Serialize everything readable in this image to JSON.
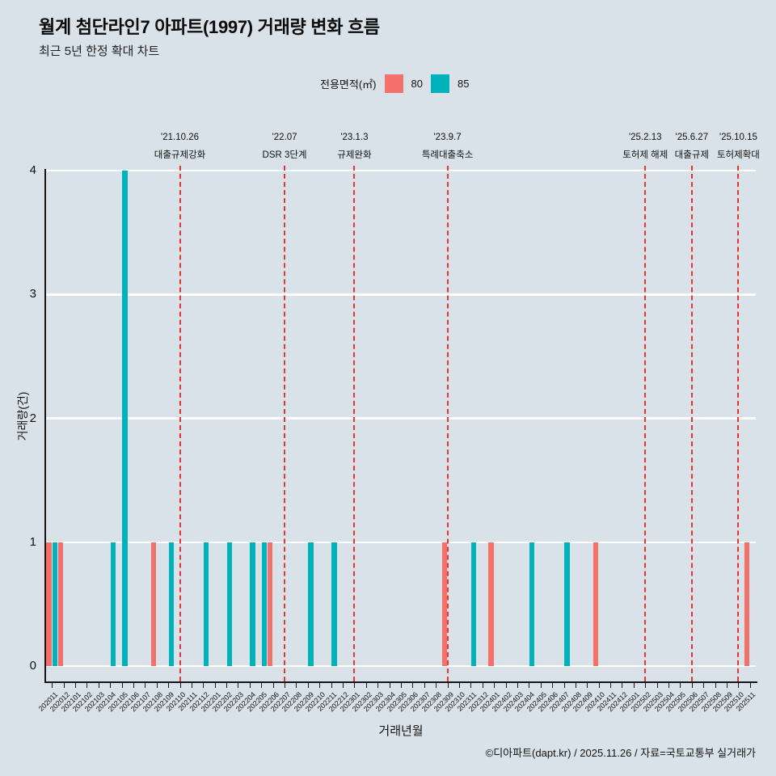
{
  "header": {
    "title": "월계 첨단라인7 아파트(1997) 거래량 변화 흐름",
    "subtitle": "최근 5년 한정 확대 차트"
  },
  "legend": {
    "label": "전용면적(㎡)"
  },
  "chart_data": {
    "type": "bar",
    "title": "월계 첨단라인7 아파트(1997) 거래량 변화 흐름",
    "xlabel": "거래년월",
    "ylabel": "거래량(건)",
    "ylim": [
      0,
      4
    ],
    "yticks": [
      0,
      1,
      2,
      3,
      4
    ],
    "grid": "horizontal-white",
    "legend_position": "top-center",
    "categories": [
      "202011",
      "202012",
      "202101",
      "202102",
      "202103",
      "202104",
      "202105",
      "202106",
      "202107",
      "202108",
      "202109",
      "202110",
      "202111",
      "202112",
      "202201",
      "202202",
      "202203",
      "202204",
      "202205",
      "202206",
      "202207",
      "202208",
      "202209",
      "202210",
      "202211",
      "202212",
      "202301",
      "202302",
      "202303",
      "202304",
      "202305",
      "202306",
      "202307",
      "202308",
      "202309",
      "202310",
      "202311",
      "202312",
      "202401",
      "202402",
      "202403",
      "202404",
      "202405",
      "202406",
      "202407",
      "202408",
      "202409",
      "202410",
      "202411",
      "202412",
      "202501",
      "202502",
      "202503",
      "202504",
      "202505",
      "202506",
      "202507",
      "202508",
      "202509",
      "202510",
      "202511"
    ],
    "series": [
      {
        "name": "80",
        "color": "#f3706b",
        "values": [
          1,
          1,
          0,
          0,
          0,
          0,
          0,
          0,
          0,
          1,
          0,
          0,
          0,
          0,
          0,
          0,
          0,
          0,
          0,
          1,
          0,
          0,
          0,
          0,
          0,
          0,
          0,
          0,
          0,
          0,
          0,
          0,
          0,
          0,
          1,
          0,
          0,
          0,
          1,
          0,
          0,
          0,
          0,
          0,
          0,
          0,
          0,
          1,
          0,
          0,
          0,
          0,
          0,
          0,
          0,
          0,
          0,
          0,
          0,
          0,
          1
        ]
      },
      {
        "name": "85",
        "color": "#00b2ba",
        "values": [
          1,
          0,
          0,
          0,
          0,
          1,
          4,
          0,
          0,
          0,
          1,
          0,
          0,
          1,
          0,
          1,
          0,
          1,
          1,
          0,
          0,
          0,
          1,
          0,
          1,
          0,
          0,
          0,
          0,
          0,
          0,
          0,
          0,
          0,
          0,
          0,
          1,
          0,
          0,
          0,
          0,
          1,
          0,
          0,
          1,
          0,
          0,
          0,
          0,
          0,
          0,
          0,
          0,
          0,
          0,
          0,
          0,
          0,
          0,
          0,
          0
        ]
      }
    ],
    "annotations": [
      {
        "month": "202110",
        "date": "'21.10.26",
        "label": "대출규제강화"
      },
      {
        "month": "202207",
        "date": "'22.07",
        "label": "DSR 3단계"
      },
      {
        "month": "202301",
        "date": "'23.1.3",
        "label": "규제완화"
      },
      {
        "month": "202309",
        "date": "'23.9.7",
        "label": "특례대출축소"
      },
      {
        "month": "202502",
        "date": "'25.2.13",
        "label": "토허제 해제"
      },
      {
        "month": "202506",
        "date": "'25.6.27",
        "label": "대출규제"
      },
      {
        "month": "202510",
        "date": "'25.10.15",
        "label": "토허제확대"
      }
    ],
    "annotation_line_color": "#e8362d"
  },
  "footer": {
    "credit": "©디아파트(dapt.kr) / 2025.11.26 / 자료=국토교통부 실거래가"
  }
}
